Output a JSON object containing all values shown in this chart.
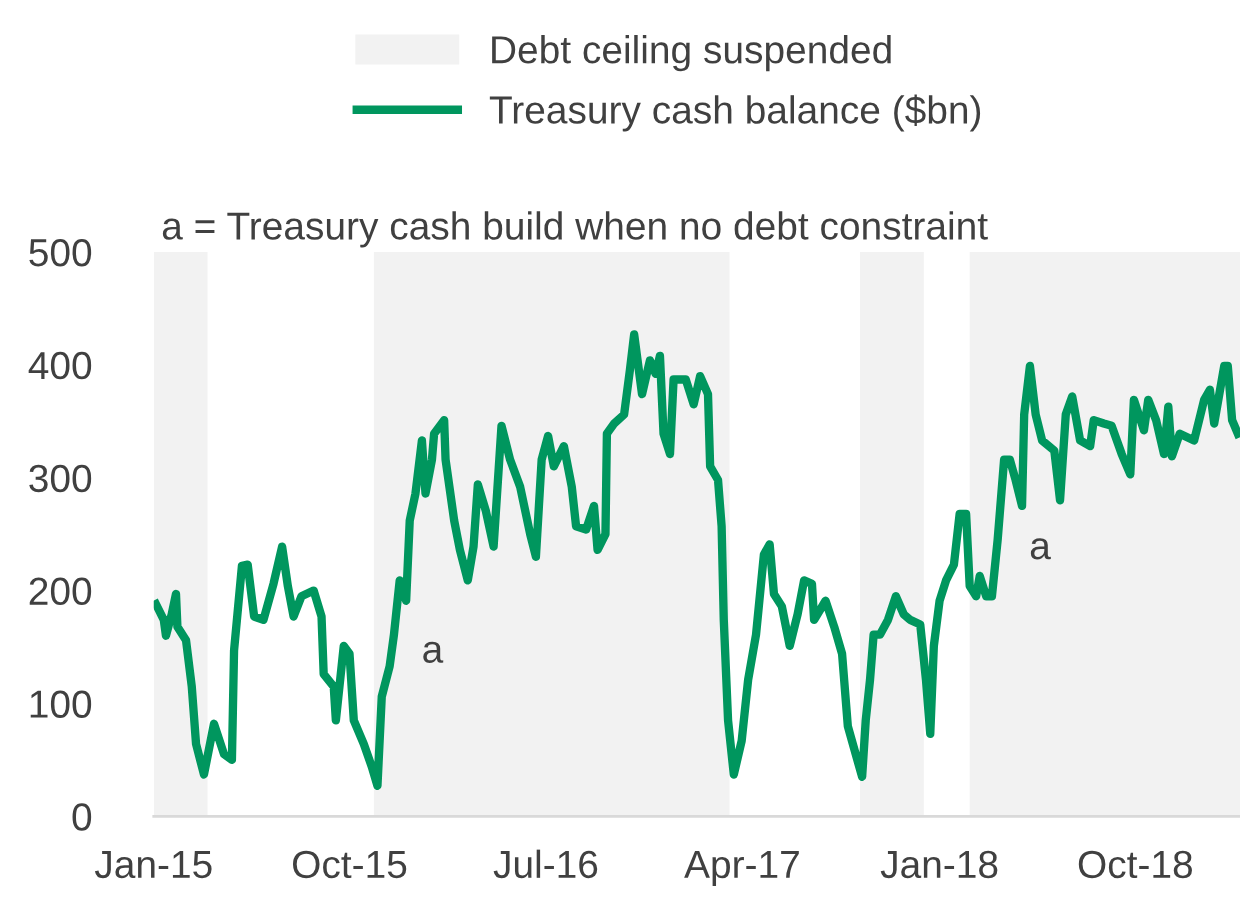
{
  "chart_data": {
    "type": "line",
    "annotations": [
      "a = Treasury cash build when no debt constraint",
      "a",
      "a"
    ],
    "x": [
      "2015-01-04",
      "2015-01-15",
      "2015-01-18",
      "2015-01-26",
      "2015-02-01",
      "2015-02-03",
      "2015-02-15",
      "2015-02-23",
      "2015-03-01",
      "2015-03-12",
      "2015-03-26",
      "2015-04-09",
      "2015-04-20",
      "2015-04-23",
      "2015-05-04",
      "2015-05-12",
      "2015-05-21",
      "2015-06-03",
      "2015-06-17",
      "2015-06-29",
      "2015-07-07",
      "2015-07-15",
      "2015-07-26",
      "2015-08-12",
      "2015-08-23",
      "2015-08-26",
      "2015-09-09",
      "2015-09-12",
      "2015-09-23",
      "2015-10-01",
      "2015-10-07",
      "2015-10-21",
      "2015-11-01",
      "2015-11-09",
      "2015-11-15",
      "2015-11-26",
      "2015-12-02",
      "2015-12-10",
      "2015-12-19",
      "2015-12-24",
      "2016-01-01",
      "2016-01-10",
      "2016-01-15",
      "2016-01-24",
      "2016-01-27",
      "2016-02-10",
      "2016-02-12",
      "2016-02-24",
      "2016-03-03",
      "2016-03-14",
      "2016-03-22",
      "2016-03-28",
      "2016-04-08",
      "2016-04-19",
      "2016-04-30",
      "2016-05-12",
      "2016-05-26",
      "2016-06-09",
      "2016-06-17",
      "2016-06-25",
      "2016-07-04",
      "2016-07-12",
      "2016-07-26",
      "2016-08-06",
      "2016-08-12",
      "2016-08-26",
      "2016-09-06",
      "2016-09-11",
      "2016-09-22",
      "2016-09-24",
      "2016-10-04",
      "2016-10-18",
      "2016-10-26",
      "2016-11-01",
      "2016-11-12",
      "2016-11-23",
      "2016-12-01",
      "2016-12-07",
      "2016-12-12",
      "2016-12-21",
      "2016-12-26",
      "2017-01-12",
      "2017-01-23",
      "2017-02-01",
      "2017-02-12",
      "2017-02-15",
      "2017-02-26",
      "2017-03-03",
      "2017-03-06",
      "2017-03-12",
      "2017-03-20",
      "2017-03-31",
      "2017-04-09",
      "2017-04-20",
      "2017-05-01",
      "2017-05-09",
      "2017-05-15",
      "2017-05-26",
      "2017-06-06",
      "2017-06-17",
      "2017-06-26",
      "2017-07-07",
      "2017-07-10",
      "2017-07-26",
      "2017-08-07",
      "2017-08-18",
      "2017-08-26",
      "2017-09-06",
      "2017-09-15",
      "2017-09-20",
      "2017-09-26",
      "2017-10-01",
      "2017-10-10",
      "2017-10-21",
      "2017-11-01",
      "2017-11-12",
      "2017-11-21",
      "2017-12-05",
      "2017-12-13",
      "2017-12-19",
      "2017-12-24",
      "2018-01-01",
      "2018-01-10",
      "2018-01-21",
      "2018-01-29",
      "2018-02-07",
      "2018-02-12",
      "2018-02-21",
      "2018-02-26",
      "2018-03-07",
      "2018-03-15",
      "2018-03-23",
      "2018-04-01",
      "2018-04-09",
      "2018-04-17",
      "2018-04-26",
      "2018-04-29",
      "2018-05-07",
      "2018-05-15",
      "2018-05-24",
      "2018-06-10",
      "2018-06-18",
      "2018-06-26",
      "2018-07-05",
      "2018-07-16",
      "2018-07-30",
      "2018-08-04",
      "2018-08-18",
      "2018-08-29",
      "2018-09-12",
      "2018-09-24",
      "2018-09-29",
      "2018-10-13",
      "2018-10-19",
      "2018-10-30",
      "2018-11-10",
      "2018-11-16",
      "2018-11-21",
      "2018-12-02",
      "2018-12-22",
      "2019-01-05",
      "2019-01-13",
      "2019-01-19",
      "2019-02-02",
      "2019-02-07",
      "2019-02-13",
      "2019-02-21"
    ],
    "series": [
      {
        "name": "Treasury cash balance ($bn)",
        "color": "#00965e",
        "values": [
          188,
          174,
          160,
          179,
          197,
          168,
          156,
          115,
          64,
          37,
          82,
          55,
          50,
          147,
          222,
          223,
          177,
          174,
          206,
          239,
          204,
          177,
          195,
          200,
          177,
          126,
          115,
          85,
          151,
          144,
          85,
          64,
          44,
          27,
          106,
          133,
          161,
          209,
          191,
          262,
          286,
          333,
          286,
          316,
          339,
          351,
          316,
          262,
          236,
          209,
          239,
          294,
          271,
          239,
          346,
          316,
          292,
          250,
          230,
          316,
          337,
          310,
          328,
          292,
          257,
          254,
          275,
          236,
          250,
          339,
          348,
          356,
          395,
          427,
          374,
          404,
          392,
          408,
          339,
          321,
          387,
          387,
          365,
          390,
          374,
          310,
          298,
          257,
          174,
          85,
          37,
          67,
          121,
          161,
          232,
          241,
          197,
          186,
          151,
          179,
          209,
          206,
          174,
          191,
          168,
          144,
          80,
          55,
          35,
          85,
          121,
          161,
          161,
          174,
          195,
          179,
          174,
          170,
          121,
          73,
          151,
          191,
          209,
          223,
          268,
          268,
          204,
          195,
          213,
          195,
          195,
          245,
          316,
          316,
          298,
          275,
          356,
          399,
          356,
          333,
          324,
          280,
          356,
          372,
          333,
          328,
          351,
          348,
          346,
          321,
          303,
          369,
          342,
          369,
          351,
          321,
          363,
          319,
          339,
          333,
          369,
          378,
          348,
          399,
          399,
          351,
          339
        ]
      }
    ],
    "bands": [
      {
        "axis": "x",
        "from": "2015-01-01",
        "to": "2015-03-17",
        "label": "Debt ceiling suspended",
        "color": "#f2f2f2"
      },
      {
        "axis": "x",
        "from": "2015-11-04",
        "to": "2017-03-14",
        "color": "#f2f2f2"
      },
      {
        "axis": "x",
        "from": "2017-09-12",
        "to": "2017-12-10",
        "color": "#f2f2f2"
      },
      {
        "axis": "x",
        "from": "2018-02-12",
        "to": "2019-02-24",
        "color": "#f2f2f2"
      }
    ],
    "xlim": [
      "2015-01-01",
      "2019-02-24"
    ],
    "xticks": [
      {
        "value": "2015-01-01",
        "label": "Jan-15"
      },
      {
        "value": "2015-10-01",
        "label": "Oct-15"
      },
      {
        "value": "2016-07-01",
        "label": "Jul-16"
      },
      {
        "value": "2017-04-01",
        "label": "Apr-17"
      },
      {
        "value": "2018-01-01",
        "label": "Jan-18"
      },
      {
        "value": "2018-10-01",
        "label": "Oct-18"
      }
    ],
    "ylim": [
      0,
      500
    ],
    "yticks": [
      0,
      100,
      200,
      300,
      400,
      500
    ],
    "grid": false,
    "legend": "top",
    "line_style": "solid",
    "marker": "none"
  }
}
